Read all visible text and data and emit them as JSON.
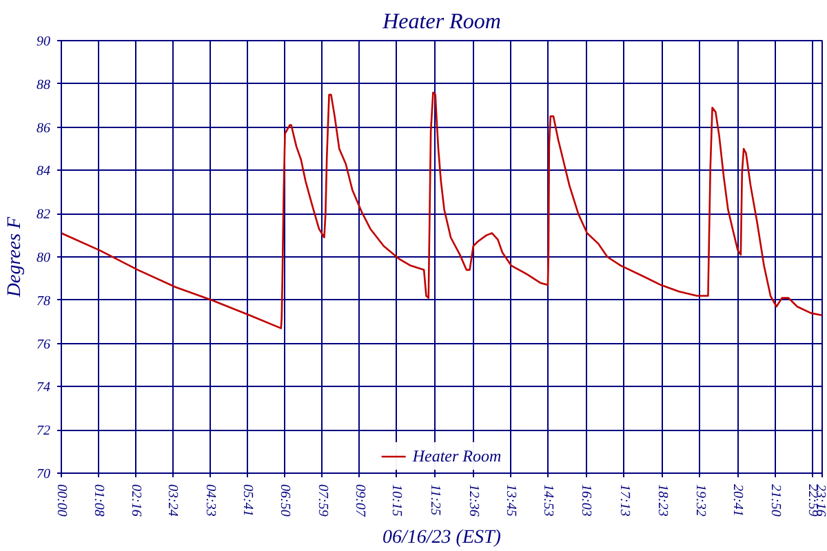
{
  "chart_data": {
    "type": "line",
    "title": "Heater Room",
    "xlabel": "06/16/23 (EST)",
    "ylabel": "Degrees F",
    "xlim": [
      0,
      23.27
    ],
    "ylim": [
      70,
      90
    ],
    "xticks": [
      {
        "value": 0,
        "label": "00:00"
      },
      {
        "value": 1.133,
        "label": "01:08"
      },
      {
        "value": 2.267,
        "label": "02:16"
      },
      {
        "value": 3.4,
        "label": "03:24"
      },
      {
        "value": 4.55,
        "label": "04:33"
      },
      {
        "value": 5.683,
        "label": "05:41"
      },
      {
        "value": 6.833,
        "label": "06:50"
      },
      {
        "value": 7.983,
        "label": "07:59"
      },
      {
        "value": 9.117,
        "label": "09:07"
      },
      {
        "value": 10.25,
        "label": "10:15"
      },
      {
        "value": 11.417,
        "label": "11:25"
      },
      {
        "value": 12.6,
        "label": "12:36"
      },
      {
        "value": 13.75,
        "label": "13:45"
      },
      {
        "value": 14.883,
        "label": "14:53"
      },
      {
        "value": 16.05,
        "label": "16:03"
      },
      {
        "value": 17.217,
        "label": "17:13"
      },
      {
        "value": 18.383,
        "label": "18:23"
      },
      {
        "value": 19.533,
        "label": "19:32"
      },
      {
        "value": 20.683,
        "label": "20:41"
      },
      {
        "value": 21.833,
        "label": "21:50"
      },
      {
        "value": 22.983,
        "label": "22:59"
      },
      {
        "value": 23.267,
        "label": "23:16"
      }
    ],
    "yticks": [
      70,
      72,
      74,
      76,
      78,
      80,
      82,
      84,
      86,
      88,
      90
    ],
    "grid": true,
    "legend": "bottom",
    "series": [
      {
        "name": "Heater Room",
        "color": "#c00000",
        "x": [
          0,
          1.18,
          2.34,
          3.5,
          4.6,
          5.76,
          6.72,
          6.74,
          6.76,
          6.8,
          6.84,
          6.99,
          7.03,
          7.19,
          7.33,
          7.47,
          7.67,
          7.88,
          8.04,
          8.08,
          8.12,
          8.19,
          8.25,
          8.36,
          8.5,
          8.7,
          8.9,
          9.18,
          9.45,
          9.86,
          10.34,
          10.68,
          11.09,
          11.16,
          11.23,
          11.3,
          11.37,
          11.44,
          11.48,
          11.53,
          11.61,
          11.71,
          11.91,
          12.19,
          12.39,
          12.49,
          12.6,
          12.73,
          13.0,
          13.17,
          13.35,
          13.49,
          13.76,
          14.24,
          14.65,
          14.88,
          14.9,
          14.92,
          14.96,
          15.05,
          15.2,
          15.33,
          15.54,
          15.81,
          16.08,
          16.43,
          16.7,
          17.11,
          17.8,
          18.34,
          18.89,
          19.44,
          19.78,
          19.85,
          19.91,
          20.01,
          20.12,
          20.26,
          20.39,
          20.53,
          20.69,
          20.78,
          20.82,
          20.87,
          20.94,
          21.08,
          21.28,
          21.49,
          21.69,
          21.87,
          22.04,
          22.24,
          22.51,
          22.93,
          23.27
        ],
        "values": [
          81.1,
          80.3,
          79.4,
          78.6,
          78.0,
          77.3,
          76.7,
          77.2,
          78.9,
          82.9,
          85.7,
          86.1,
          86.1,
          85.1,
          84.5,
          83.5,
          82.4,
          81.3,
          80.9,
          82.0,
          84.6,
          87.5,
          87.5,
          86.5,
          85.0,
          84.3,
          83.1,
          82.1,
          81.3,
          80.5,
          79.9,
          79.6,
          79.4,
          78.2,
          78.1,
          85.8,
          87.6,
          87.5,
          86.3,
          85.0,
          83.5,
          82.2,
          80.9,
          80.1,
          79.4,
          79.4,
          80.5,
          80.7,
          81.0,
          81.1,
          80.8,
          80.2,
          79.6,
          79.2,
          78.8,
          78.7,
          80.3,
          85.2,
          86.5,
          86.5,
          85.4,
          84.6,
          83.3,
          82.0,
          81.1,
          80.6,
          80.0,
          79.6,
          79.1,
          78.7,
          78.4,
          78.2,
          78.2,
          84.1,
          86.9,
          86.7,
          85.6,
          83.7,
          82.2,
          81.3,
          80.3,
          80.1,
          83.9,
          85.0,
          84.8,
          83.3,
          81.6,
          79.6,
          78.2,
          77.7,
          78.1,
          78.1,
          77.7,
          77.4,
          77.3
        ]
      }
    ]
  }
}
